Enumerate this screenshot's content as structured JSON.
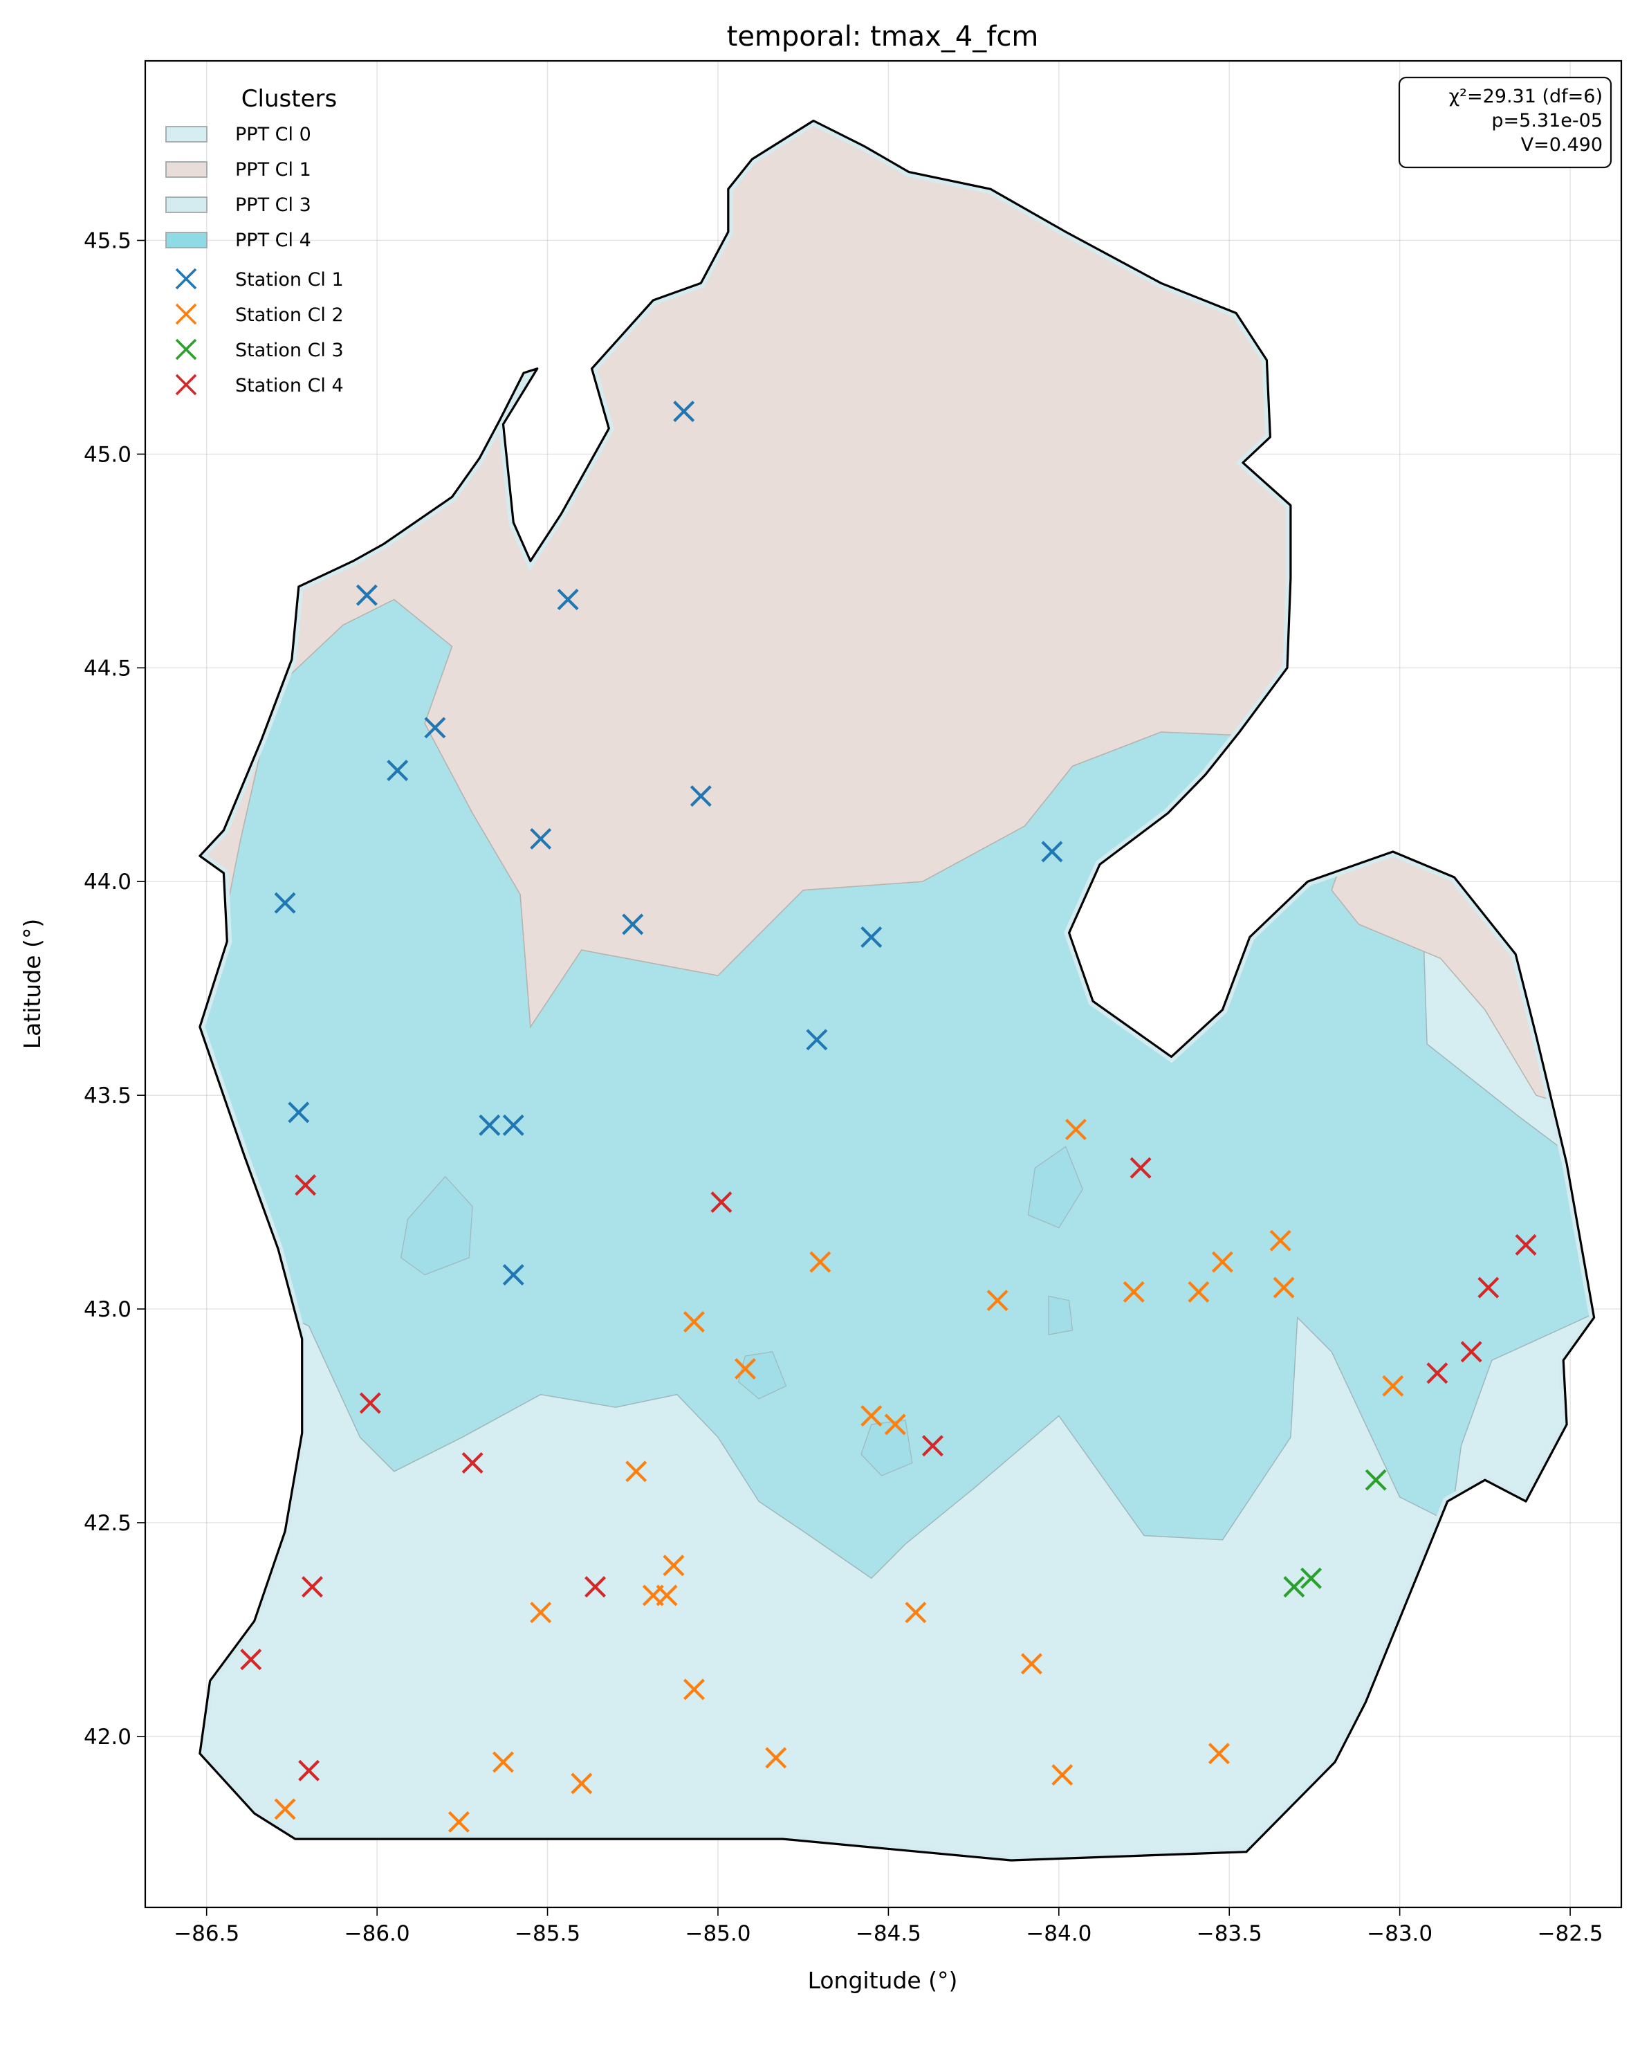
{
  "chart_data": {
    "type": "scatter",
    "title": "temporal: tmax_4_fcm",
    "xlabel": "Longitude (°)",
    "ylabel": "Latitude (°)",
    "xlim": [
      -86.68,
      -82.35
    ],
    "ylim": [
      41.6,
      45.92
    ],
    "x_ticks": [
      -86.5,
      -86.0,
      -85.5,
      -85.0,
      -84.5,
      -84.0,
      -83.5,
      -83.0,
      -82.5
    ],
    "x_tick_labels": [
      "−86.5",
      "−86.0",
      "−85.5",
      "−85.0",
      "−84.5",
      "−84.0",
      "−83.5",
      "−83.0",
      "−82.5"
    ],
    "y_ticks": [
      42.0,
      42.5,
      43.0,
      43.5,
      44.0,
      44.5,
      45.0,
      45.5
    ],
    "y_tick_labels": [
      "42.0",
      "42.5",
      "43.0",
      "43.5",
      "44.0",
      "44.5",
      "45.0",
      "45.5"
    ],
    "grid": true,
    "legend": {
      "title": "Clusters",
      "placement": "top-left",
      "patches": [
        {
          "label": "PPT Cl 0",
          "color": "#d6eef2"
        },
        {
          "label": "PPT Cl 1",
          "color": "#e8ddd9"
        },
        {
          "label": "PPT Cl 3",
          "color": "#d4ebf0"
        },
        {
          "label": "PPT Cl 4",
          "color": "#8edbe5"
        }
      ]
    },
    "stats_box": {
      "placement": "top-right",
      "lines": [
        "χ²=29.31 (df=6)",
        "p=5.31e-05",
        "V=0.490"
      ]
    },
    "series": [
      {
        "name": "Station Cl 1",
        "color": "#1f77b4",
        "points": [
          [
            -85.1,
            45.1
          ],
          [
            -86.03,
            44.67
          ],
          [
            -85.44,
            44.66
          ],
          [
            -85.83,
            44.36
          ],
          [
            -85.94,
            44.26
          ],
          [
            -85.05,
            44.2
          ],
          [
            -85.52,
            44.1
          ],
          [
            -84.02,
            44.07
          ],
          [
            -86.27,
            43.95
          ],
          [
            -85.25,
            43.9
          ],
          [
            -84.55,
            43.87
          ],
          [
            -84.71,
            43.63
          ],
          [
            -86.23,
            43.46
          ],
          [
            -85.67,
            43.43
          ],
          [
            -85.6,
            43.43
          ],
          [
            -85.6,
            43.08
          ]
        ]
      },
      {
        "name": "Station Cl 2",
        "color": "#ff7f0e",
        "points": [
          [
            -83.95,
            43.42
          ],
          [
            -83.35,
            43.16
          ],
          [
            -84.7,
            43.11
          ],
          [
            -83.52,
            43.11
          ],
          [
            -83.78,
            43.04
          ],
          [
            -83.34,
            43.05
          ],
          [
            -83.59,
            43.04
          ],
          [
            -84.18,
            43.02
          ],
          [
            -85.07,
            42.97
          ],
          [
            -84.92,
            42.86
          ],
          [
            -83.02,
            42.82
          ],
          [
            -84.55,
            42.75
          ],
          [
            -84.48,
            42.73
          ],
          [
            -85.24,
            42.62
          ],
          [
            -85.13,
            42.4
          ],
          [
            -85.15,
            42.33
          ],
          [
            -85.19,
            42.33
          ],
          [
            -84.42,
            42.29
          ],
          [
            -85.52,
            42.29
          ],
          [
            -84.08,
            42.17
          ],
          [
            -85.07,
            42.11
          ],
          [
            -83.53,
            41.96
          ],
          [
            -84.83,
            41.95
          ],
          [
            -85.63,
            41.94
          ],
          [
            -83.99,
            41.91
          ],
          [
            -85.4,
            41.89
          ],
          [
            -86.27,
            41.83
          ],
          [
            -85.76,
            41.8
          ]
        ]
      },
      {
        "name": "Station Cl 3",
        "color": "#2ca02c",
        "points": [
          [
            -83.07,
            42.6
          ],
          [
            -83.26,
            42.37
          ],
          [
            -83.31,
            42.35
          ]
        ]
      },
      {
        "name": "Station Cl 4",
        "color": "#d62728",
        "points": [
          [
            -83.76,
            43.33
          ],
          [
            -86.21,
            43.29
          ],
          [
            -84.99,
            43.25
          ],
          [
            -82.63,
            43.15
          ],
          [
            -82.74,
            43.05
          ],
          [
            -82.79,
            42.9
          ],
          [
            -82.89,
            42.85
          ],
          [
            -86.02,
            42.78
          ],
          [
            -84.37,
            42.68
          ],
          [
            -85.72,
            42.64
          ],
          [
            -85.36,
            42.35
          ],
          [
            -86.19,
            42.35
          ],
          [
            -86.37,
            42.18
          ],
          [
            -86.2,
            41.92
          ]
        ]
      }
    ],
    "regions": [
      {
        "label": "PPT Cl 0",
        "color": "#d6eef2"
      },
      {
        "label": "PPT Cl 1",
        "color": "#e8ddd9"
      },
      {
        "label": "PPT Cl 3",
        "color": "#d4ebf0"
      },
      {
        "label": "PPT Cl 4",
        "color": "#8edbe5"
      }
    ]
  }
}
